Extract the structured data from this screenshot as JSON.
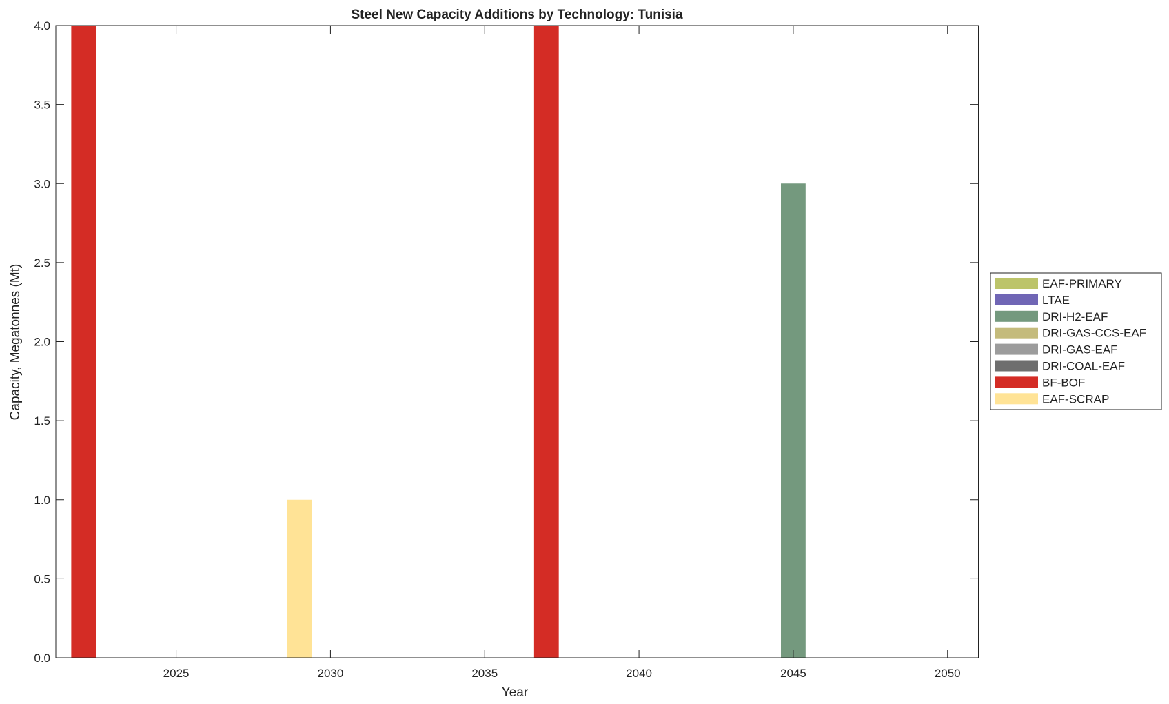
{
  "chart_data": {
    "type": "bar",
    "title": "Steel New Capacity Additions by Technology: Tunisia",
    "xlabel": "Year",
    "ylabel": "Capacity, Megatonnes (Mt)",
    "xlim": [
      2021.1,
      2051
    ],
    "ylim": [
      0,
      4
    ],
    "xticks": [
      2025,
      2030,
      2035,
      2040,
      2045,
      2050
    ],
    "yticks": [
      "0.0",
      "0.5",
      "1.0",
      "1.5",
      "2.0",
      "2.5",
      "3.0",
      "3.5",
      "4.0"
    ],
    "grid": false,
    "stacked": true,
    "bar_width_years": 0.8,
    "legend_position": "outside-right",
    "series": [
      {
        "name": "EAF-PRIMARY",
        "color": "#bcc46a",
        "points": []
      },
      {
        "name": "LTAE",
        "color": "#7066b5",
        "points": []
      },
      {
        "name": "DRI-H2-EAF",
        "color": "#74997e",
        "points": [
          {
            "x": 2045,
            "y": 3
          }
        ]
      },
      {
        "name": "DRI-GAS-CCS-EAF",
        "color": "#c4bb7c",
        "points": []
      },
      {
        "name": "DRI-GAS-EAF",
        "color": "#9c9c9c",
        "points": []
      },
      {
        "name": "DRI-COAL-EAF",
        "color": "#6e6e6e",
        "points": []
      },
      {
        "name": "BF-BOF",
        "color": "#d42c25",
        "points": [
          {
            "x": 2022,
            "y": 4
          },
          {
            "x": 2037,
            "y": 4
          }
        ]
      },
      {
        "name": "EAF-SCRAP",
        "color": "#ffe396",
        "points": [
          {
            "x": 2029,
            "y": 1
          }
        ]
      }
    ]
  }
}
